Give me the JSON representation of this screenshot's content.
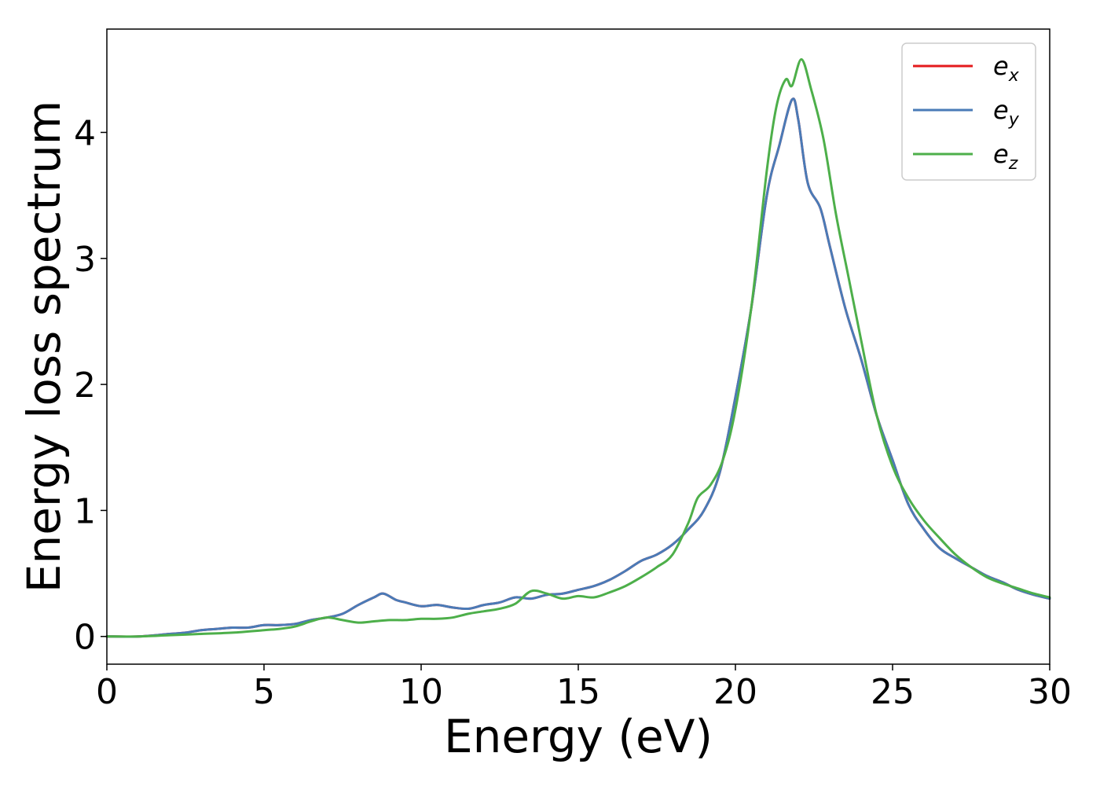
{
  "chart_data": {
    "type": "line",
    "xlabel": "Energy (eV)",
    "ylabel": "Energy loss spectrum",
    "xlim": [
      0,
      30
    ],
    "ylim": [
      -0.22,
      4.82
    ],
    "xticks": [
      "0",
      "5",
      "10",
      "15",
      "20",
      "25",
      "30"
    ],
    "yticks": [
      "0",
      "1",
      "2",
      "3",
      "4"
    ],
    "grid": false,
    "legend_position": "top-right",
    "series": [
      {
        "name": "e",
        "subscript": "x",
        "color": "#e41a1c",
        "x": [
          0,
          1,
          2,
          2.5,
          3,
          3.5,
          4,
          4.5,
          5,
          5.5,
          6,
          6.5,
          7,
          7.5,
          8,
          8.5,
          8.8,
          9.2,
          9.5,
          10,
          10.5,
          11,
          11.5,
          12,
          12.5,
          13,
          13.5,
          14,
          14.5,
          15,
          15.5,
          16,
          16.5,
          17,
          17.5,
          18,
          18.5,
          19,
          19.5,
          20,
          20.5,
          21,
          21.4,
          21.8,
          22,
          22.3,
          22.7,
          23,
          23.5,
          24,
          24.5,
          25,
          25.5,
          26,
          26.5,
          27,
          27.5,
          28,
          28.5,
          29,
          29.5,
          30
        ],
        "y": [
          0,
          0,
          0.02,
          0.03,
          0.05,
          0.06,
          0.07,
          0.07,
          0.09,
          0.09,
          0.1,
          0.13,
          0.15,
          0.18,
          0.25,
          0.31,
          0.34,
          0.29,
          0.27,
          0.24,
          0.25,
          0.23,
          0.22,
          0.25,
          0.27,
          0.31,
          0.3,
          0.33,
          0.34,
          0.37,
          0.4,
          0.45,
          0.52,
          0.6,
          0.65,
          0.73,
          0.85,
          1.0,
          1.3,
          1.9,
          2.6,
          3.5,
          3.9,
          4.26,
          4.1,
          3.6,
          3.4,
          3.1,
          2.6,
          2.2,
          1.75,
          1.4,
          1.05,
          0.85,
          0.7,
          0.62,
          0.55,
          0.48,
          0.43,
          0.37,
          0.33,
          0.3
        ]
      },
      {
        "name": "e",
        "subscript": "y",
        "color": "#4a7bb7",
        "x": [
          0,
          1,
          2,
          2.5,
          3,
          3.5,
          4,
          4.5,
          5,
          5.5,
          6,
          6.5,
          7,
          7.5,
          8,
          8.5,
          8.8,
          9.2,
          9.5,
          10,
          10.5,
          11,
          11.5,
          12,
          12.5,
          13,
          13.5,
          14,
          14.5,
          15,
          15.5,
          16,
          16.5,
          17,
          17.5,
          18,
          18.5,
          19,
          19.5,
          20,
          20.5,
          21,
          21.4,
          21.8,
          22,
          22.3,
          22.7,
          23,
          23.5,
          24,
          24.5,
          25,
          25.5,
          26,
          26.5,
          27,
          27.5,
          28,
          28.5,
          29,
          29.5,
          30
        ],
        "y": [
          0,
          0,
          0.02,
          0.03,
          0.05,
          0.06,
          0.07,
          0.07,
          0.09,
          0.09,
          0.1,
          0.13,
          0.15,
          0.18,
          0.25,
          0.31,
          0.34,
          0.29,
          0.27,
          0.24,
          0.25,
          0.23,
          0.22,
          0.25,
          0.27,
          0.31,
          0.3,
          0.33,
          0.34,
          0.37,
          0.4,
          0.45,
          0.52,
          0.6,
          0.65,
          0.73,
          0.85,
          1.0,
          1.3,
          1.9,
          2.6,
          3.5,
          3.9,
          4.26,
          4.1,
          3.6,
          3.4,
          3.1,
          2.6,
          2.2,
          1.75,
          1.4,
          1.05,
          0.85,
          0.7,
          0.62,
          0.55,
          0.48,
          0.43,
          0.37,
          0.33,
          0.3
        ]
      },
      {
        "name": "e",
        "subscript": "z",
        "color": "#4daf4a",
        "x": [
          0,
          1,
          2,
          3,
          4,
          5,
          5.5,
          6,
          6.5,
          7,
          7.5,
          8,
          8.5,
          9,
          9.5,
          10,
          10.5,
          11,
          11.5,
          12,
          12.5,
          13,
          13.5,
          14,
          14.5,
          15,
          15.5,
          16,
          16.5,
          17,
          17.5,
          18,
          18.5,
          18.8,
          19.2,
          19.6,
          20,
          20.5,
          21,
          21.3,
          21.6,
          21.8,
          22.1,
          22.4,
          22.8,
          23.2,
          23.6,
          24,
          24.5,
          25,
          25.5,
          26,
          26.5,
          27,
          27.5,
          28,
          28.5,
          29,
          29.5,
          30
        ],
        "y": [
          0,
          0,
          0.01,
          0.02,
          0.03,
          0.05,
          0.06,
          0.08,
          0.12,
          0.15,
          0.13,
          0.11,
          0.12,
          0.13,
          0.13,
          0.14,
          0.14,
          0.15,
          0.18,
          0.2,
          0.22,
          0.26,
          0.36,
          0.34,
          0.3,
          0.32,
          0.31,
          0.35,
          0.4,
          0.47,
          0.55,
          0.65,
          0.9,
          1.1,
          1.2,
          1.4,
          1.8,
          2.6,
          3.7,
          4.2,
          4.42,
          4.37,
          4.58,
          4.35,
          3.95,
          3.35,
          2.85,
          2.35,
          1.75,
          1.35,
          1.1,
          0.92,
          0.78,
          0.65,
          0.55,
          0.47,
          0.42,
          0.38,
          0.34,
          0.31
        ]
      }
    ]
  }
}
